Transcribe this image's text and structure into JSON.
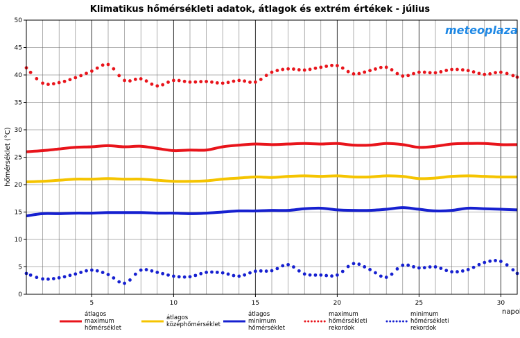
{
  "chart_data": {
    "type": "line",
    "title": "Klimatikus hőmérsékleti adatok, átlagok és extrém értékek - július",
    "xlabel": "napok",
    "ylabel": "hőmérséklet (°C)",
    "xlim": [
      1,
      31
    ],
    "ylim": [
      0,
      50
    ],
    "xticks": [
      5,
      10,
      15,
      20,
      25,
      30
    ],
    "yticks": [
      0,
      5,
      10,
      15,
      20,
      25,
      30,
      35,
      40,
      45,
      50
    ],
    "grid": true,
    "logo": "meteoplaza",
    "x": [
      1,
      2,
      3,
      4,
      5,
      6,
      7,
      8,
      9,
      10,
      11,
      12,
      13,
      14,
      15,
      16,
      17,
      18,
      19,
      20,
      21,
      22,
      23,
      24,
      25,
      26,
      27,
      28,
      29,
      30,
      31
    ],
    "series": [
      {
        "name": "átlagos maximum hőmérséklet",
        "style": "line",
        "color": "#e8141b",
        "values": [
          26.0,
          26.2,
          26.5,
          26.8,
          26.9,
          27.1,
          26.9,
          27.0,
          26.6,
          26.2,
          26.3,
          26.3,
          26.9,
          27.2,
          27.4,
          27.3,
          27.4,
          27.5,
          27.4,
          27.5,
          27.2,
          27.2,
          27.5,
          27.3,
          26.8,
          27.0,
          27.4,
          27.5,
          27.5,
          27.3,
          27.3
        ]
      },
      {
        "name": "átlagos középhőmérséklet",
        "style": "line",
        "color": "#f5c400",
        "values": [
          20.5,
          20.6,
          20.8,
          21.0,
          21.0,
          21.1,
          21.0,
          21.0,
          20.8,
          20.6,
          20.6,
          20.7,
          21.0,
          21.2,
          21.4,
          21.3,
          21.5,
          21.6,
          21.5,
          21.6,
          21.4,
          21.4,
          21.6,
          21.5,
          21.1,
          21.2,
          21.5,
          21.6,
          21.5,
          21.4,
          21.4
        ]
      },
      {
        "name": "átlagos minimum hőmérséklet",
        "style": "line",
        "color": "#1620d0",
        "values": [
          14.3,
          14.7,
          14.7,
          14.8,
          14.8,
          14.9,
          14.9,
          14.9,
          14.8,
          14.8,
          14.7,
          14.8,
          15.0,
          15.2,
          15.2,
          15.3,
          15.3,
          15.6,
          15.7,
          15.4,
          15.3,
          15.3,
          15.5,
          15.8,
          15.5,
          15.2,
          15.3,
          15.7,
          15.6,
          15.5,
          15.4
        ]
      },
      {
        "name": "maximum hőmérsékleti rekordok",
        "style": "dotted",
        "color": "#e8141b",
        "values": [
          41.3,
          38.5,
          38.6,
          39.5,
          40.7,
          41.9,
          39.0,
          39.3,
          38.0,
          39.0,
          38.7,
          38.8,
          38.5,
          39.0,
          38.7,
          40.5,
          41.1,
          40.9,
          41.4,
          41.7,
          40.2,
          40.8,
          41.4,
          39.8,
          40.5,
          40.4,
          41.0,
          40.8,
          40.1,
          40.5,
          39.6
        ]
      },
      {
        "name": "minimum hőmérsékleti rekordok",
        "style": "dotted",
        "color": "#1620d0",
        "values": [
          3.8,
          2.8,
          3.0,
          3.7,
          4.4,
          3.6,
          2.0,
          4.4,
          4.0,
          3.3,
          3.2,
          4.0,
          3.9,
          3.3,
          4.2,
          4.3,
          5.4,
          3.7,
          3.5,
          3.5,
          5.6,
          4.5,
          3.1,
          5.3,
          4.8,
          5.0,
          4.1,
          4.5,
          5.8,
          6.0,
          3.8
        ]
      }
    ],
    "legend": [
      {
        "label": [
          "átlagos",
          "maximum",
          "hőmérséklet"
        ],
        "style": "line",
        "color": "#e8141b"
      },
      {
        "label": [
          "átlagos",
          "középhőmérséklet"
        ],
        "style": "line",
        "color": "#f5c400"
      },
      {
        "label": [
          "átlagos",
          "minimum",
          "hőmérséklet"
        ],
        "style": "line",
        "color": "#1620d0"
      },
      {
        "label": [
          "maximum",
          "hőmérsékleti",
          "rekordok"
        ],
        "style": "dotted",
        "color": "#e8141b"
      },
      {
        "label": [
          "minimum",
          "hőmérsékleti",
          "rekordok"
        ],
        "style": "dotted",
        "color": "#1620d0"
      }
    ]
  }
}
